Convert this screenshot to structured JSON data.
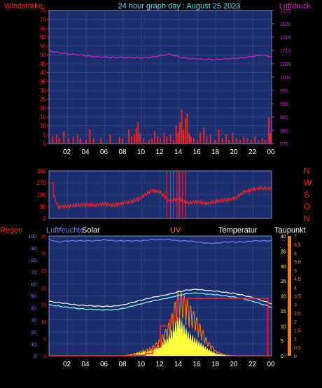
{
  "header": {
    "left_label": "Windstärke",
    "title": "24 hour graph day : August 25 2023",
    "right_label": "Luftdruck"
  },
  "colors": {
    "background": "#000000",
    "plot_bg": "#1c2e6e",
    "grid": "#5a6fa8",
    "wind": "#ff2020",
    "pressure": "#d020d0",
    "title": "#4fe0ff",
    "humidity": "#7080ff",
    "temperature": "#ffffff",
    "dewpoint": "#80ffff",
    "uv": "#ff8000",
    "solar": "#ffff40",
    "rain": "#ff2020",
    "white_label": "#ffffff"
  },
  "chart_data": [
    {
      "type": "line",
      "name": "wind-pressure",
      "x_ticks": [
        "02",
        "04",
        "06",
        "08",
        "10",
        "12",
        "14",
        "16",
        "18",
        "20",
        "22",
        "00"
      ],
      "left_axis": {
        "label": "Windstärke",
        "ticks": [
          0,
          5,
          10,
          15,
          20,
          25,
          30,
          35,
          40,
          45,
          50,
          55,
          60,
          65,
          70,
          75
        ],
        "ylim": [
          0,
          75
        ]
      },
      "right_axis": {
        "label": "Luftdruck",
        "ticks": [
          975,
          980,
          985,
          990,
          995,
          1000,
          1005,
          1010,
          1015,
          1020,
          1025
        ],
        "ylim": [
          975,
          1025
        ]
      },
      "pressure_hourly": [
        1009.8,
        1009.2,
        1008.7,
        1008.4,
        1008.0,
        1007.6,
        1007.5,
        1007.4,
        1007.4,
        1007.3,
        1007.2,
        1007.4,
        1008.0,
        1008.6,
        1007.6,
        1007.0,
        1006.8,
        1006.6,
        1006.6,
        1006.8,
        1007.0,
        1007.3,
        1007.8,
        1008.3,
        1007.6
      ],
      "wind_bars": [
        [
          0.4,
          4
        ],
        [
          0.8,
          5
        ],
        [
          1.1,
          3
        ],
        [
          1.6,
          7
        ],
        [
          2.1,
          3
        ],
        [
          2.6,
          4
        ],
        [
          3.1,
          5
        ],
        [
          3.4,
          3
        ],
        [
          4.0,
          2
        ],
        [
          4.4,
          8
        ],
        [
          4.8,
          3
        ],
        [
          5.6,
          3
        ],
        [
          6.6,
          5
        ],
        [
          7.6,
          4
        ],
        [
          7.9,
          3
        ],
        [
          8.6,
          8
        ],
        [
          8.9,
          4
        ],
        [
          9.2,
          5
        ],
        [
          9.4,
          9
        ],
        [
          9.6,
          12
        ],
        [
          9.8,
          6
        ],
        [
          10.2,
          3
        ],
        [
          10.8,
          2
        ],
        [
          11.1,
          3
        ],
        [
          11.4,
          7
        ],
        [
          11.7,
          4
        ],
        [
          12.0,
          3
        ],
        [
          12.4,
          6
        ],
        [
          12.7,
          4
        ],
        [
          13.1,
          5
        ],
        [
          13.4,
          2
        ],
        [
          13.7,
          10
        ],
        [
          13.9,
          6
        ],
        [
          14.1,
          12
        ],
        [
          14.3,
          19
        ],
        [
          14.5,
          8
        ],
        [
          14.7,
          14
        ],
        [
          14.9,
          17
        ],
        [
          15.1,
          6
        ],
        [
          15.3,
          4
        ],
        [
          15.6,
          3
        ],
        [
          16.0,
          2
        ],
        [
          16.3,
          6
        ],
        [
          16.7,
          9
        ],
        [
          17.0,
          4
        ],
        [
          17.4,
          5
        ],
        [
          17.9,
          2
        ],
        [
          18.3,
          8
        ],
        [
          18.7,
          3
        ],
        [
          19.1,
          5
        ],
        [
          19.4,
          2
        ],
        [
          19.8,
          6
        ],
        [
          20.2,
          3
        ],
        [
          20.6,
          2
        ],
        [
          21.0,
          4
        ],
        [
          21.4,
          3
        ],
        [
          21.8,
          2
        ],
        [
          22.2,
          4
        ],
        [
          22.6,
          2
        ],
        [
          23.0,
          3
        ],
        [
          23.3,
          2
        ],
        [
          23.7,
          15
        ],
        [
          23.85,
          6
        ]
      ]
    },
    {
      "type": "line",
      "name": "wind-direction",
      "y_ticks": [
        0,
        90,
        180,
        270,
        360
      ],
      "ylim": [
        0,
        360
      ],
      "compass_labels": [
        "N",
        "W",
        "S",
        "O",
        "N"
      ],
      "direction_hourly": [
        270,
        85,
        95,
        100,
        105,
        100,
        110,
        100,
        115,
        130,
        160,
        210,
        200,
        130,
        150,
        120,
        125,
        115,
        130,
        140,
        150,
        200,
        220,
        230,
        225
      ],
      "spike_hours": [
        12.7,
        13.1,
        13.4,
        13.8,
        14.0,
        14.1,
        14.4,
        14.7
      ]
    },
    {
      "type": "line",
      "name": "solar-uv-temperature",
      "labels": {
        "rain": "Regen",
        "humidity": "Luftfeuchte",
        "solar": "Solar",
        "uv": "UV",
        "temperature": "Temperatur",
        "dewpoint": "Taupunkt"
      },
      "axis_rain": {
        "ticks": [
          0,
          10,
          20,
          30,
          40,
          50,
          60,
          70,
          80,
          90,
          100
        ],
        "ylim": [
          0,
          100
        ]
      },
      "axis_humidity": {
        "ticks": [
          0,
          5,
          10,
          15,
          20,
          25,
          30,
          35
        ],
        "ylim": [
          0,
          35
        ]
      },
      "axis_uv": {
        "ticks": [
          "0",
          "0,5",
          "1",
          "1,5",
          "2",
          "2,5",
          "3",
          "3,5",
          "4",
          "4,5",
          "5",
          "5,5",
          "6",
          "6,5",
          "7"
        ],
        "ylim": [
          0,
          7
        ]
      },
      "axis_temperature": {
        "ticks": [
          0,
          5,
          10,
          15,
          20,
          25,
          30,
          35,
          40
        ],
        "ylim": [
          0,
          40
        ]
      },
      "humidity_hourly": [
        97,
        95,
        96,
        96,
        96,
        96,
        97,
        96,
        96,
        96,
        96,
        97,
        97,
        97,
        96,
        96,
        95,
        94,
        94,
        95,
        95,
        95,
        96,
        96,
        96
      ],
      "temperature_hourly": [
        18.2,
        17.8,
        17.4,
        17.0,
        16.8,
        16.6,
        16.5,
        16.6,
        17.0,
        17.8,
        18.6,
        19.4,
        20.0,
        20.6,
        21.4,
        22.0,
        22.2,
        21.8,
        21.6,
        21.2,
        20.8,
        20.2,
        19.4,
        18.4,
        17.4
      ],
      "dewpoint_hourly": [
        17.0,
        16.6,
        16.2,
        15.8,
        15.6,
        15.4,
        15.3,
        15.4,
        15.8,
        16.6,
        17.4,
        18.2,
        18.8,
        19.4,
        20.2,
        20.8,
        21.0,
        20.6,
        20.4,
        20.0,
        19.6,
        19.0,
        18.2,
        17.2,
        16.2
      ],
      "rain_steps": [
        [
          0,
          0
        ],
        [
          9.0,
          0.5
        ],
        [
          10.4,
          2
        ],
        [
          11.2,
          7
        ],
        [
          12.0,
          25
        ],
        [
          13.0,
          30
        ],
        [
          13.8,
          47
        ],
        [
          15.0,
          48
        ],
        [
          23.6,
          48
        ],
        [
          23.6,
          0
        ],
        [
          24,
          0
        ]
      ],
      "solar_hourly": [
        0,
        0,
        0,
        0,
        0,
        0,
        0,
        0,
        2,
        8,
        20,
        30,
        55,
        110,
        200,
        120,
        80,
        40,
        12,
        3,
        0,
        0,
        0,
        0,
        0
      ],
      "uv_hourly": [
        0,
        0,
        0,
        0,
        0,
        0,
        0,
        0,
        0,
        0.1,
        0.3,
        0.5,
        1.0,
        2.0,
        4.0,
        3.2,
        2.2,
        1.0,
        0.3,
        0.05,
        0,
        0,
        0,
        0,
        0
      ]
    }
  ]
}
